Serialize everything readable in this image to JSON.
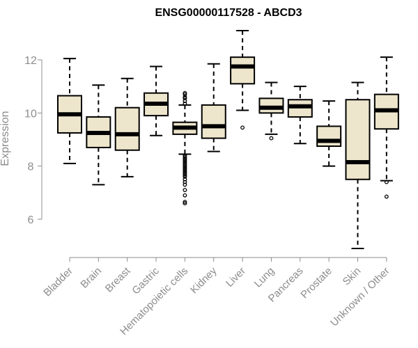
{
  "chart_data": {
    "type": "box",
    "title": "ENSG00000117528 - ABCD3",
    "ylabel": "Expression",
    "xlabel": "",
    "yticks": [
      6,
      8,
      10,
      12
    ],
    "ylim": [
      4.8,
      13.3
    ],
    "grid": false,
    "colors": {
      "box_fill": "#ede6cc",
      "box_stroke": "#000000",
      "median": "#000000",
      "axis": "#8c8c8c",
      "tick_label": "#8c8c8c"
    },
    "categories": [
      "Bladder",
      "Brain",
      "Breast",
      "Gastric",
      "Hematopoietic cells",
      "Kidney",
      "Liver",
      "Lung",
      "Pancreas",
      "Prostate",
      "Skin",
      "Unknown / Other"
    ],
    "boxes": [
      {
        "category": "Bladder",
        "whisker_low": 8.1,
        "q1": 9.25,
        "median": 9.95,
        "q3": 10.65,
        "whisker_high": 12.05,
        "outliers": []
      },
      {
        "category": "Brain",
        "whisker_low": 7.3,
        "q1": 8.7,
        "median": 9.25,
        "q3": 9.85,
        "whisker_high": 11.05,
        "outliers": []
      },
      {
        "category": "Breast",
        "whisker_low": 7.6,
        "q1": 8.6,
        "median": 9.2,
        "q3": 10.2,
        "whisker_high": 11.3,
        "outliers": []
      },
      {
        "category": "Gastric",
        "whisker_low": 9.15,
        "q1": 9.9,
        "median": 10.35,
        "q3": 10.75,
        "whisker_high": 11.75,
        "outliers": []
      },
      {
        "category": "Hematopoietic cells",
        "whisker_low": 8.45,
        "q1": 9.2,
        "median": 9.45,
        "q3": 9.65,
        "whisker_high": 10.3,
        "outliers": [
          10.35,
          10.45,
          10.55,
          10.6,
          10.7,
          10.75,
          8.4,
          8.35,
          8.3,
          8.25,
          8.2,
          8.15,
          8.1,
          8.05,
          8.0,
          7.95,
          7.9,
          7.85,
          7.8,
          7.75,
          7.7,
          7.65,
          7.6,
          7.5,
          7.4,
          7.3,
          7.1,
          6.9,
          6.65,
          6.6
        ]
      },
      {
        "category": "Kidney",
        "whisker_low": 8.55,
        "q1": 9.05,
        "median": 9.5,
        "q3": 10.3,
        "whisker_high": 11.85,
        "outliers": []
      },
      {
        "category": "Liver",
        "whisker_low": 10.1,
        "q1": 11.1,
        "median": 11.75,
        "q3": 12.1,
        "whisker_high": 13.1,
        "outliers": [
          9.45
        ]
      },
      {
        "category": "Lung",
        "whisker_low": 9.2,
        "q1": 10.0,
        "median": 10.2,
        "q3": 10.55,
        "whisker_high": 11.15,
        "outliers": [
          9.05
        ]
      },
      {
        "category": "Pancreas",
        "whisker_low": 8.85,
        "q1": 9.85,
        "median": 10.25,
        "q3": 10.5,
        "whisker_high": 11.0,
        "outliers": []
      },
      {
        "category": "Prostate",
        "whisker_low": 8.0,
        "q1": 8.75,
        "median": 8.95,
        "q3": 9.5,
        "whisker_high": 10.45,
        "outliers": []
      },
      {
        "category": "Skin",
        "whisker_low": 4.9,
        "q1": 7.5,
        "median": 8.15,
        "q3": 10.5,
        "whisker_high": 11.15,
        "outliers": []
      },
      {
        "category": "Unknown / Other",
        "whisker_low": 7.45,
        "q1": 9.4,
        "median": 10.1,
        "q3": 10.7,
        "whisker_high": 12.1,
        "outliers": [
          7.4,
          6.85
        ]
      }
    ]
  }
}
